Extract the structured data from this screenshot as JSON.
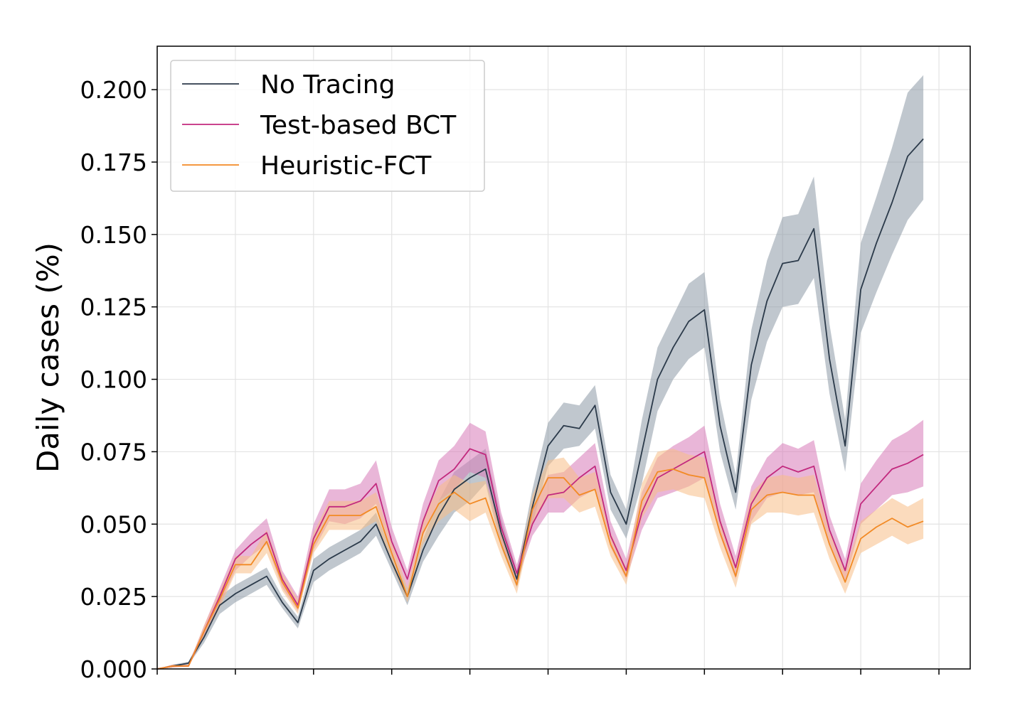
{
  "chart_data": {
    "type": "line",
    "title": "",
    "xlabel": "",
    "ylabel": "Daily cases (%)",
    "grid": true,
    "legend_position": "top-left",
    "x": [
      0,
      1,
      2,
      3,
      4,
      5,
      6,
      7,
      8,
      9,
      10,
      11,
      12,
      13,
      14,
      15,
      16,
      17,
      18,
      19,
      20,
      21,
      22,
      23,
      24,
      25,
      26,
      27,
      28,
      29,
      30,
      31,
      32,
      33,
      34,
      35,
      36,
      37,
      38,
      39,
      40,
      41,
      42,
      43,
      44,
      45,
      46,
      47,
      48,
      49
    ],
    "xlim": [
      0,
      52
    ],
    "x_ticks": [
      0,
      5,
      10,
      15,
      20,
      25,
      30,
      35,
      40,
      45,
      50
    ],
    "ylim": [
      0,
      0.215
    ],
    "y_ticks": [
      0.0,
      0.025,
      0.05,
      0.075,
      0.1,
      0.125,
      0.15,
      0.175,
      0.2
    ],
    "y_tick_labels": [
      "0.000",
      "0.025",
      "0.050",
      "0.075",
      "0.100",
      "0.125",
      "0.150",
      "0.175",
      "0.200"
    ],
    "series": [
      {
        "name": "No Tracing",
        "color": "#2b3a4a",
        "band_color": "#8c99a6",
        "values": [
          0,
          0.001,
          0.002,
          0.011,
          0.022,
          0.026,
          0.029,
          0.032,
          0.023,
          0.016,
          0.034,
          0.038,
          0.041,
          0.044,
          0.05,
          0.037,
          0.025,
          0.041,
          0.053,
          0.062,
          0.066,
          0.069,
          0.047,
          0.031,
          0.056,
          0.077,
          0.084,
          0.083,
          0.091,
          0.061,
          0.05,
          0.075,
          0.1,
          0.111,
          0.12,
          0.124,
          0.084,
          0.061,
          0.105,
          0.127,
          0.14,
          0.141,
          0.152,
          0.107,
          0.077,
          0.131,
          0.147,
          0.161,
          0.177,
          0.183
        ],
        "lower": [
          0,
          0.0005,
          0.0015,
          0.009,
          0.019,
          0.023,
          0.026,
          0.029,
          0.021,
          0.014,
          0.03,
          0.034,
          0.037,
          0.04,
          0.046,
          0.034,
          0.022,
          0.037,
          0.046,
          0.054,
          0.058,
          0.064,
          0.042,
          0.028,
          0.05,
          0.07,
          0.076,
          0.077,
          0.083,
          0.055,
          0.045,
          0.064,
          0.089,
          0.1,
          0.107,
          0.111,
          0.075,
          0.055,
          0.093,
          0.113,
          0.125,
          0.126,
          0.135,
          0.095,
          0.068,
          0.116,
          0.13,
          0.143,
          0.155,
          0.162
        ],
        "upper": [
          0,
          0.0015,
          0.0025,
          0.013,
          0.025,
          0.029,
          0.032,
          0.035,
          0.025,
          0.018,
          0.038,
          0.042,
          0.045,
          0.048,
          0.054,
          0.04,
          0.028,
          0.045,
          0.058,
          0.068,
          0.072,
          0.076,
          0.052,
          0.034,
          0.062,
          0.085,
          0.092,
          0.091,
          0.098,
          0.067,
          0.055,
          0.086,
          0.111,
          0.122,
          0.133,
          0.137,
          0.093,
          0.067,
          0.117,
          0.141,
          0.156,
          0.157,
          0.17,
          0.119,
          0.086,
          0.147,
          0.163,
          0.18,
          0.199,
          0.205
        ]
      },
      {
        "name": "Test-based BCT",
        "color": "#c2297e",
        "band_color": "#d77ab8",
        "values": [
          0,
          0.001,
          0.001,
          0.013,
          0.025,
          0.038,
          0.043,
          0.047,
          0.031,
          0.022,
          0.045,
          0.056,
          0.056,
          0.058,
          0.064,
          0.044,
          0.031,
          0.051,
          0.065,
          0.069,
          0.076,
          0.074,
          0.049,
          0.033,
          0.05,
          0.06,
          0.061,
          0.066,
          0.07,
          0.046,
          0.034,
          0.054,
          0.066,
          0.069,
          0.072,
          0.075,
          0.051,
          0.035,
          0.057,
          0.066,
          0.07,
          0.068,
          0.07,
          0.048,
          0.034,
          0.057,
          0.063,
          0.069,
          0.071,
          0.074
        ],
        "lower": [
          0,
          0.0005,
          0.0008,
          0.011,
          0.022,
          0.034,
          0.039,
          0.043,
          0.028,
          0.02,
          0.041,
          0.051,
          0.05,
          0.052,
          0.057,
          0.04,
          0.028,
          0.046,
          0.058,
          0.062,
          0.068,
          0.066,
          0.044,
          0.03,
          0.046,
          0.054,
          0.054,
          0.059,
          0.062,
          0.042,
          0.031,
          0.048,
          0.059,
          0.061,
          0.063,
          0.066,
          0.046,
          0.031,
          0.051,
          0.059,
          0.061,
          0.06,
          0.061,
          0.043,
          0.03,
          0.05,
          0.055,
          0.06,
          0.061,
          0.063
        ],
        "upper": [
          0,
          0.0015,
          0.0015,
          0.015,
          0.028,
          0.041,
          0.047,
          0.052,
          0.034,
          0.025,
          0.05,
          0.062,
          0.062,
          0.064,
          0.072,
          0.049,
          0.034,
          0.057,
          0.072,
          0.077,
          0.085,
          0.082,
          0.054,
          0.036,
          0.055,
          0.067,
          0.068,
          0.073,
          0.078,
          0.051,
          0.038,
          0.061,
          0.073,
          0.077,
          0.08,
          0.084,
          0.057,
          0.039,
          0.063,
          0.073,
          0.078,
          0.076,
          0.079,
          0.053,
          0.038,
          0.064,
          0.072,
          0.079,
          0.082,
          0.086
        ]
      },
      {
        "name": "Heuristic-FCT",
        "color": "#f28a25",
        "band_color": "#f7be86",
        "values": [
          0,
          0.001,
          0.001,
          0.013,
          0.024,
          0.036,
          0.036,
          0.044,
          0.03,
          0.021,
          0.043,
          0.053,
          0.053,
          0.053,
          0.056,
          0.04,
          0.025,
          0.047,
          0.057,
          0.061,
          0.057,
          0.059,
          0.043,
          0.029,
          0.055,
          0.066,
          0.066,
          0.06,
          0.062,
          0.043,
          0.032,
          0.058,
          0.068,
          0.069,
          0.067,
          0.066,
          0.047,
          0.032,
          0.055,
          0.06,
          0.061,
          0.06,
          0.06,
          0.043,
          0.03,
          0.045,
          0.049,
          0.052,
          0.049,
          0.051
        ],
        "lower": [
          0,
          0.0005,
          0.0008,
          0.011,
          0.021,
          0.033,
          0.033,
          0.04,
          0.027,
          0.019,
          0.04,
          0.048,
          0.048,
          0.048,
          0.051,
          0.036,
          0.023,
          0.043,
          0.051,
          0.055,
          0.051,
          0.054,
          0.039,
          0.026,
          0.05,
          0.059,
          0.059,
          0.054,
          0.056,
          0.039,
          0.029,
          0.052,
          0.061,
          0.062,
          0.06,
          0.059,
          0.042,
          0.028,
          0.05,
          0.054,
          0.054,
          0.053,
          0.054,
          0.038,
          0.026,
          0.04,
          0.043,
          0.046,
          0.043,
          0.045
        ],
        "upper": [
          0,
          0.0015,
          0.0015,
          0.015,
          0.027,
          0.039,
          0.039,
          0.048,
          0.033,
          0.024,
          0.047,
          0.058,
          0.058,
          0.058,
          0.061,
          0.044,
          0.028,
          0.052,
          0.063,
          0.067,
          0.064,
          0.065,
          0.048,
          0.032,
          0.06,
          0.072,
          0.073,
          0.066,
          0.068,
          0.047,
          0.035,
          0.064,
          0.075,
          0.076,
          0.074,
          0.073,
          0.052,
          0.036,
          0.061,
          0.066,
          0.067,
          0.066,
          0.067,
          0.048,
          0.034,
          0.051,
          0.055,
          0.059,
          0.056,
          0.059
        ]
      }
    ]
  }
}
